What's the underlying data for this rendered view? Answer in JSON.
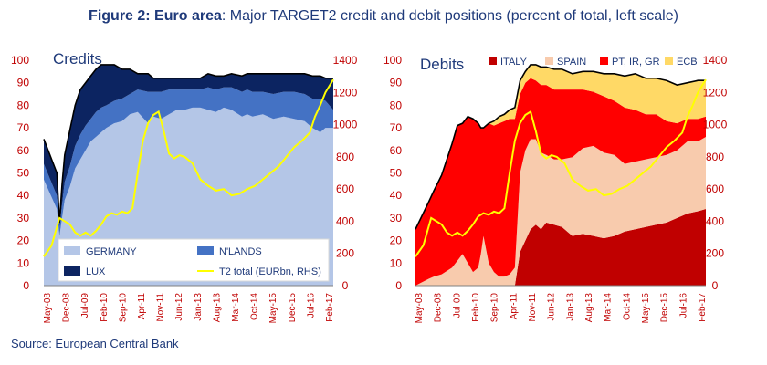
{
  "figure": {
    "title_bold": "Figure 2: Euro area",
    "title_rest": ": Major TARGET2 credit and debit positions (percent of total, left scale)",
    "source": "Source: European Central Bank"
  },
  "colors": {
    "germany": "#b4c6e7",
    "nlands": "#4472c4",
    "lux": "#0c2461",
    "italy": "#c00000",
    "spain": "#f8cbad",
    "pt_ir_gr": "#ff0000",
    "ecb": "#ffd966",
    "t2": "#ffff00",
    "axis_text": "#c00000",
    "title_blue": "#1f3a7a"
  },
  "chart_data": [
    {
      "type": "area",
      "title": "Credits",
      "x_tick_labels": [
        "May-08",
        "Dec-08",
        "Jul-09",
        "Feb-10",
        "Sep-10",
        "Apr-11",
        "Nov-11",
        "Jun-12",
        "Jan-13",
        "Aug-13",
        "Mar-14",
        "Oct-14",
        "May-15",
        "Dec-15",
        "Jul-16",
        "Feb-17"
      ],
      "x": [
        0,
        5,
        6,
        7,
        8,
        10,
        12,
        14,
        16,
        18,
        20,
        22,
        24,
        27,
        30,
        33,
        36,
        40,
        42,
        45,
        48,
        51,
        54,
        57,
        60,
        63,
        66,
        69,
        72,
        76,
        78,
        80,
        84,
        88,
        92,
        96,
        100,
        103,
        106,
        108,
        111
      ],
      "series": [
        {
          "name": "GERMANY",
          "values": [
            47,
            34,
            22,
            30,
            38,
            44,
            52,
            56,
            60,
            64,
            66,
            68,
            70,
            72,
            73,
            76,
            77,
            72,
            75,
            74,
            76,
            78,
            78,
            79,
            79,
            78,
            77,
            79,
            78,
            75,
            76,
            75,
            76,
            74,
            75,
            74,
            73,
            70,
            68,
            70,
            70
          ]
        },
        {
          "name": "N'LANDS",
          "values": [
            7,
            6,
            4,
            6,
            8,
            9,
            10,
            11,
            11,
            10,
            11,
            11,
            10,
            10,
            10,
            9,
            10,
            14,
            11,
            12,
            11,
            9,
            9,
            8,
            8,
            10,
            10,
            9,
            10,
            11,
            11,
            11,
            10,
            11,
            11,
            12,
            12,
            13,
            15,
            12,
            8
          ]
        },
        {
          "name": "LUX",
          "values": [
            11,
            10,
            2,
            9,
            12,
            16,
            18,
            20,
            19,
            19,
            19,
            19,
            18,
            16,
            13,
            11,
            7,
            8,
            6,
            6,
            5,
            5,
            5,
            5,
            5,
            6,
            6,
            5,
            6,
            7,
            7,
            8,
            8,
            9,
            8,
            8,
            9,
            10,
            10,
            10,
            14
          ]
        }
      ],
      "right_series": {
        "name": "T2 total (EURbn, RHS)",
        "x": [
          0,
          3,
          6,
          8,
          10,
          12,
          14,
          16,
          18,
          20,
          22,
          24,
          26,
          28,
          30,
          32,
          34,
          36,
          38,
          40,
          42,
          44,
          46,
          48,
          50,
          52,
          54,
          57,
          60,
          63,
          66,
          69,
          72,
          75,
          78,
          81,
          84,
          87,
          90,
          93,
          96,
          99,
          102,
          104,
          106,
          108,
          111
        ],
        "values": [
          180,
          250,
          420,
          400,
          380,
          330,
          310,
          330,
          310,
          340,
          380,
          430,
          450,
          440,
          460,
          450,
          480,
          700,
          900,
          1010,
          1060,
          1080,
          960,
          820,
          790,
          810,
          800,
          760,
          660,
          620,
          590,
          600,
          560,
          570,
          600,
          620,
          660,
          700,
          740,
          800,
          860,
          900,
          950,
          1050,
          1120,
          1200,
          1280
        ]
      },
      "y_left_ticks": [
        0,
        10,
        20,
        30,
        40,
        50,
        60,
        70,
        80,
        90,
        100
      ],
      "y_right_ticks": [
        0,
        200,
        400,
        600,
        800,
        1000,
        1200,
        1400
      ],
      "ylim": [
        0,
        100
      ],
      "ylim_right": [
        0,
        1400
      ],
      "legend": [
        {
          "label": "GERMANY",
          "color": "#b4c6e7"
        },
        {
          "label": "N'LANDS",
          "color": "#4472c4"
        },
        {
          "label": "LUX",
          "color": "#0c2461"
        },
        {
          "label": "T2 total (EURbn, RHS)",
          "color": "#ffff00"
        }
      ]
    },
    {
      "type": "area",
      "title": "Debits",
      "x_tick_labels": [
        "May-08",
        "Dec-08",
        "Jul-09",
        "Feb-10",
        "Sep-10",
        "Apr-11",
        "Nov-11",
        "Jun-12",
        "Jan-13",
        "Aug-13",
        "Mar-14",
        "Oct-14",
        "May-15",
        "Dec-15",
        "Jul-16",
        "Feb-17"
      ],
      "x": [
        0,
        5,
        7,
        10,
        14,
        16,
        18,
        20,
        22,
        24,
        25,
        26,
        28,
        30,
        32,
        34,
        36,
        38,
        40,
        42,
        44,
        46,
        48,
        50,
        53,
        56,
        60,
        64,
        68,
        72,
        76,
        80,
        84,
        88,
        92,
        96,
        100,
        104,
        108,
        111
      ],
      "series": [
        {
          "name": "ITALY",
          "values": [
            0,
            0,
            0,
            0,
            0,
            0,
            0,
            0,
            0,
            0,
            0,
            0,
            0,
            0,
            0,
            0,
            0,
            0,
            15,
            20,
            25,
            27,
            25,
            28,
            27,
            26,
            22,
            23,
            22,
            21,
            22,
            24,
            25,
            26,
            27,
            28,
            30,
            32,
            33,
            34
          ]
        },
        {
          "name": "SPAIN",
          "values": [
            0,
            3,
            4,
            5,
            8,
            11,
            14,
            10,
            6,
            8,
            14,
            22,
            10,
            6,
            4,
            4,
            5,
            8,
            35,
            40,
            40,
            38,
            34,
            30,
            29,
            30,
            35,
            38,
            40,
            38,
            36,
            30,
            30,
            30,
            30,
            30,
            30,
            32,
            31,
            32
          ]
        },
        {
          "name": "PT, IR, GR",
          "values": [
            25,
            34,
            38,
            44,
            55,
            60,
            58,
            65,
            68,
            64,
            56,
            48,
            62,
            65,
            68,
            69,
            69,
            66,
            35,
            30,
            27,
            26,
            30,
            31,
            31,
            31,
            30,
            26,
            24,
            25,
            24,
            25,
            23,
            20,
            19,
            15,
            12,
            10,
            10,
            9
          ]
        },
        {
          "name": "ECB",
          "values": [
            0,
            0,
            0,
            0,
            0,
            0,
            0,
            0,
            0,
            0,
            0,
            0,
            0,
            2,
            3,
            3,
            4,
            5,
            6,
            5,
            6,
            7,
            8,
            8,
            9,
            9,
            7,
            8,
            9,
            10,
            12,
            14,
            16,
            16,
            16,
            18,
            17,
            16,
            17,
            16
          ]
        }
      ],
      "right_series": {
        "name": "T2 total (EURbn, RHS)",
        "x": [
          0,
          3,
          6,
          8,
          10,
          12,
          14,
          16,
          18,
          20,
          22,
          24,
          26,
          28,
          30,
          32,
          34,
          36,
          38,
          40,
          42,
          44,
          46,
          48,
          50,
          52,
          54,
          57,
          60,
          63,
          66,
          69,
          72,
          75,
          78,
          81,
          84,
          87,
          90,
          93,
          96,
          99,
          102,
          104,
          106,
          108,
          111
        ],
        "values": [
          180,
          250,
          420,
          400,
          380,
          330,
          310,
          330,
          310,
          340,
          380,
          430,
          450,
          440,
          460,
          450,
          480,
          700,
          900,
          1010,
          1060,
          1080,
          960,
          820,
          790,
          810,
          800,
          760,
          660,
          620,
          590,
          600,
          560,
          570,
          600,
          620,
          660,
          700,
          740,
          800,
          860,
          900,
          950,
          1050,
          1120,
          1200,
          1280
        ]
      },
      "y_left_ticks": [
        0,
        10,
        20,
        30,
        40,
        50,
        60,
        70,
        80,
        90,
        100
      ],
      "y_right_ticks": [
        0,
        200,
        400,
        600,
        800,
        1000,
        1200,
        1400
      ],
      "ylim": [
        0,
        100
      ],
      "ylim_right": [
        0,
        1400
      ],
      "legend": [
        {
          "label": "ITALY",
          "color": "#c00000"
        },
        {
          "label": "SPAIN",
          "color": "#f8cbad"
        },
        {
          "label": "PT, IR, GR",
          "color": "#ff0000"
        },
        {
          "label": "ECB",
          "color": "#ffd966"
        }
      ]
    }
  ]
}
